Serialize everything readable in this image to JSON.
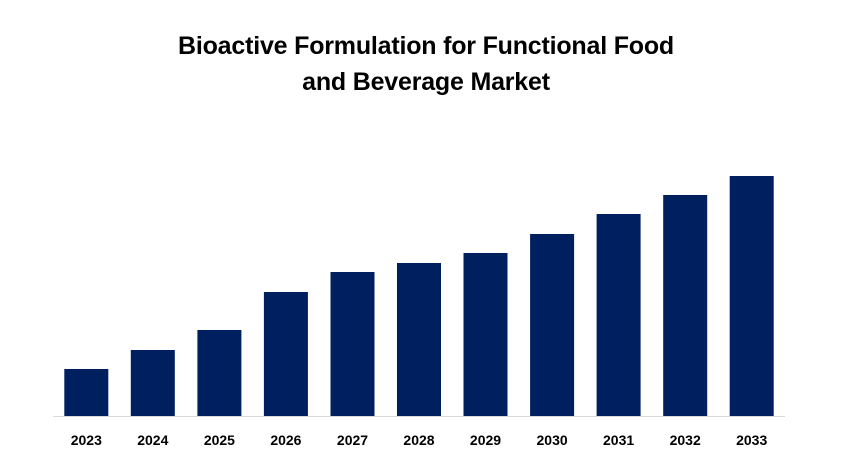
{
  "chart_data": {
    "type": "bar",
    "title_lines": [
      "Bioactive Formulation for Functional Food",
      "and Beverage Market"
    ],
    "xlabel": "",
    "ylabel": "",
    "categories": [
      "2023",
      "2024",
      "2025",
      "2026",
      "2027",
      "2028",
      "2029",
      "2030",
      "2031",
      "2032",
      "2033"
    ],
    "values": [
      47,
      66,
      86,
      124,
      144,
      153,
      163,
      182,
      202,
      221,
      240
    ],
    "ylim": [
      0,
      260
    ],
    "y_axis_visible": false,
    "grid": false,
    "legend": "none",
    "bar_color": "#001f5f",
    "baseline_color": "#d9d9d9"
  }
}
